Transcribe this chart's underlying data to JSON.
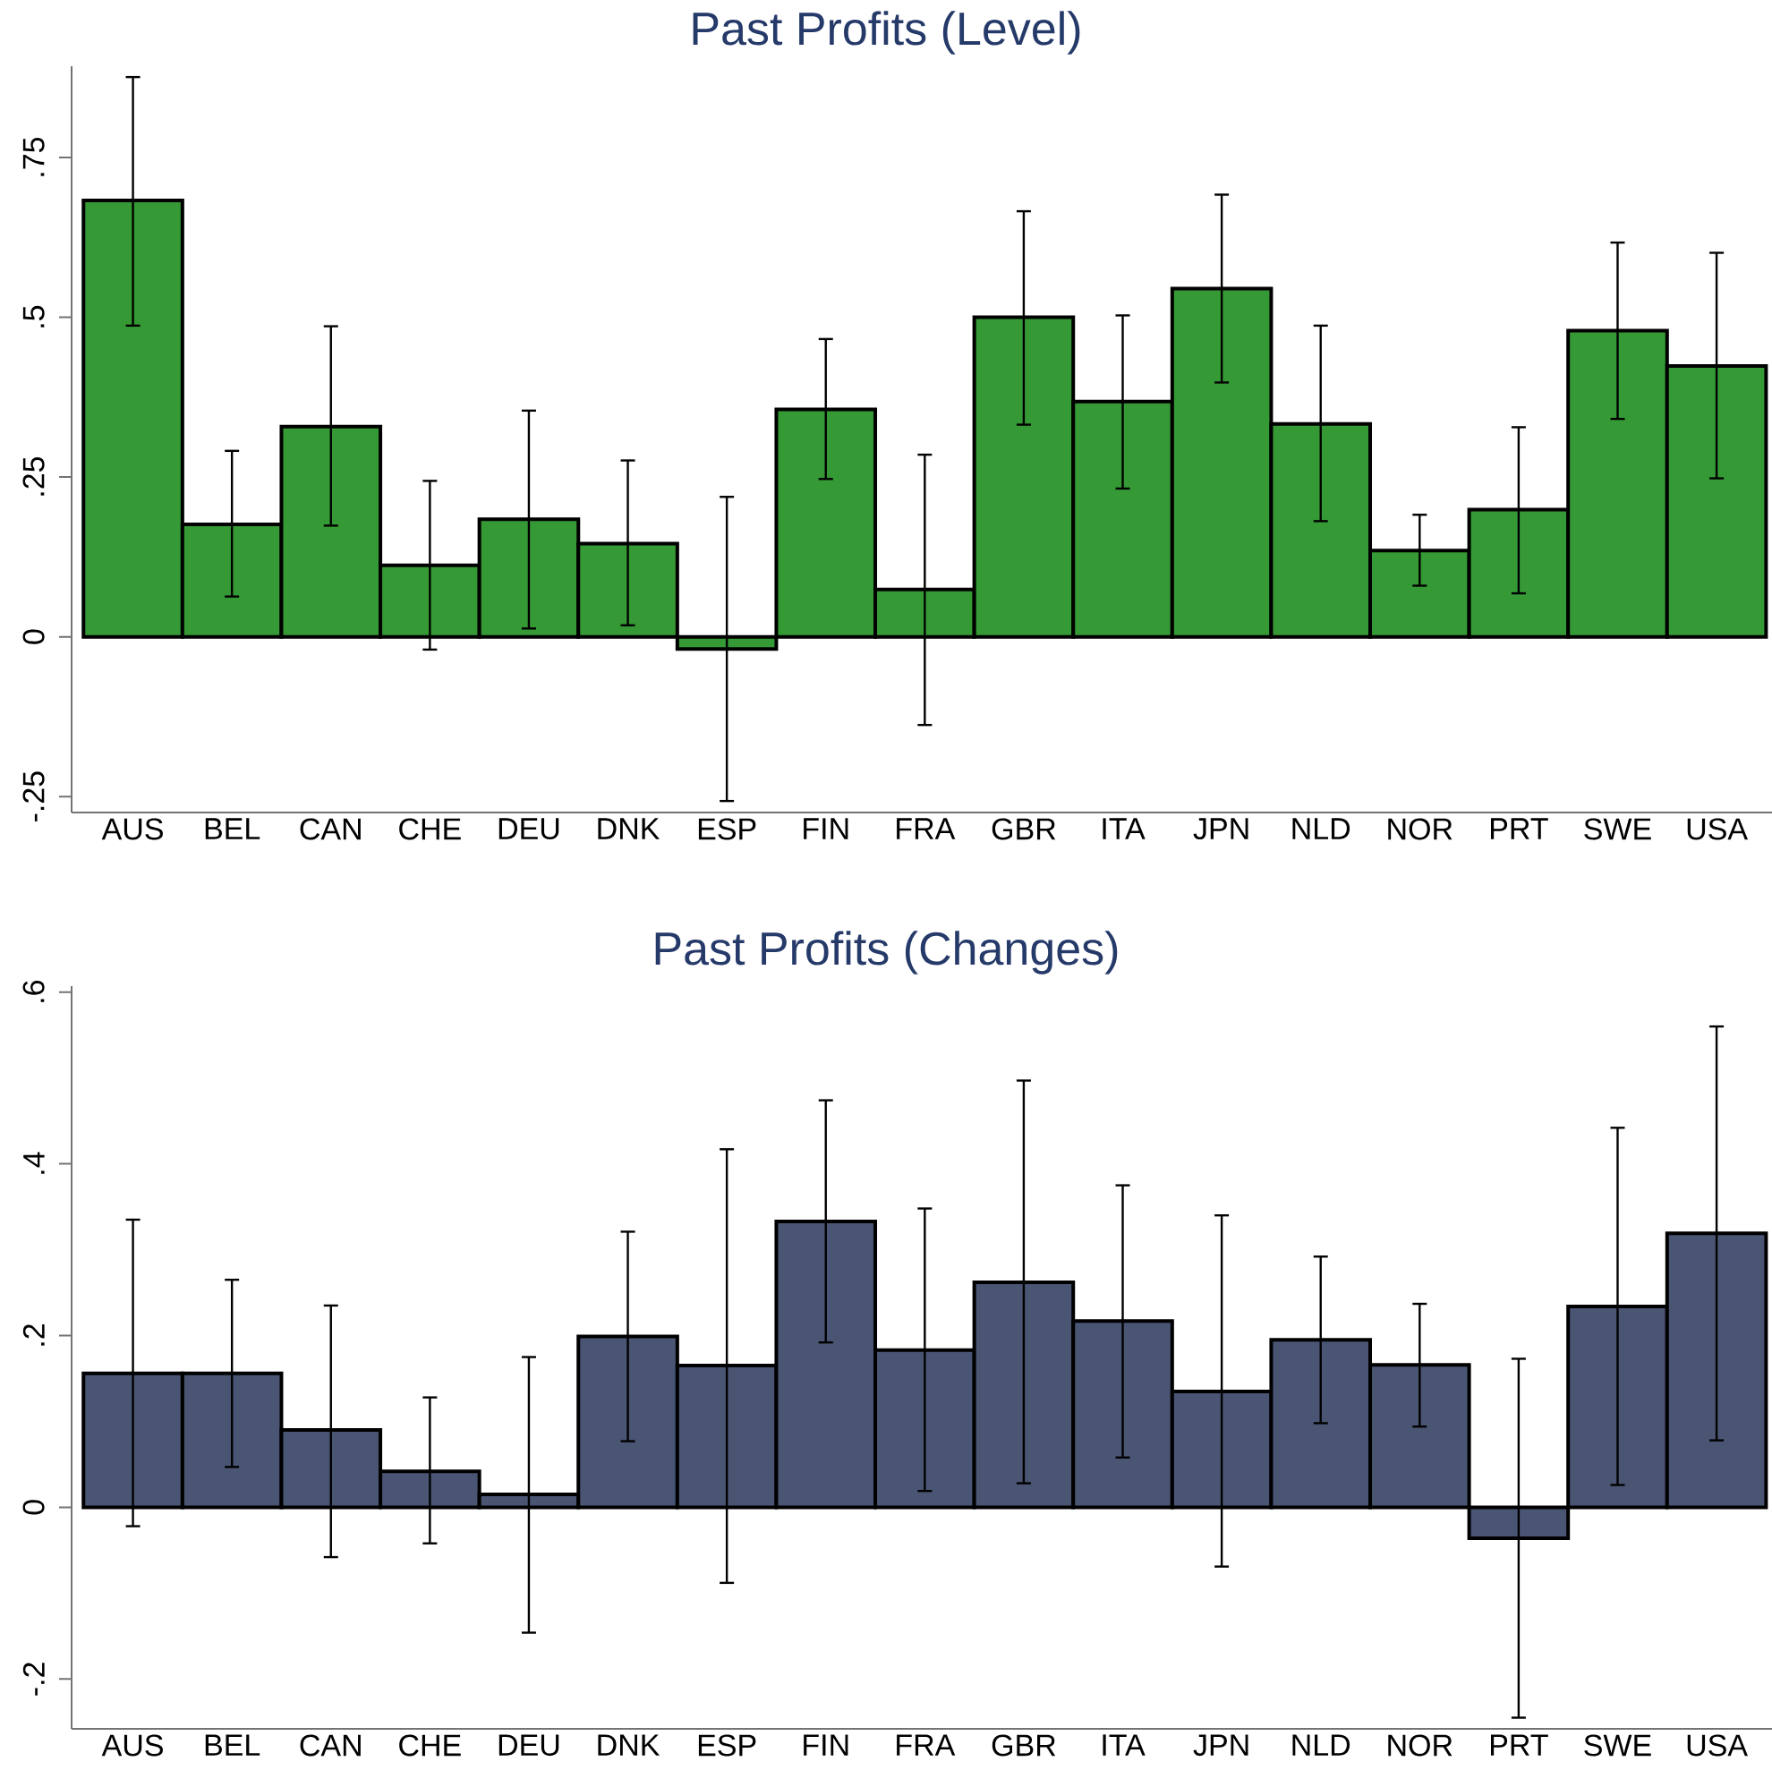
{
  "chart_data": [
    {
      "type": "bar",
      "title": "Past Profits (Level)",
      "categories": [
        "AUS",
        "BEL",
        "CAN",
        "CHE",
        "DEU",
        "DNK",
        "ESP",
        "FIN",
        "FRA",
        "GBR",
        "ITA",
        "JPN",
        "NLD",
        "NOR",
        "PRT",
        "SWE",
        "USA"
      ],
      "values": [
        0.683,
        0.176,
        0.329,
        0.112,
        0.184,
        0.146,
        -0.019,
        0.356,
        0.074,
        0.5,
        0.368,
        0.545,
        0.333,
        0.135,
        0.199,
        0.479,
        0.424
      ],
      "errors": [
        [
          0.487,
          0.876
        ],
        [
          0.063,
          0.291
        ],
        [
          0.174,
          0.486
        ],
        [
          -0.02,
          0.244
        ],
        [
          0.013,
          0.354
        ],
        [
          0.018,
          0.276
        ],
        [
          -0.257,
          0.219
        ],
        [
          0.247,
          0.466
        ],
        [
          -0.138,
          0.285
        ],
        [
          0.332,
          0.666
        ],
        [
          0.232,
          0.503
        ],
        [
          0.398,
          0.692
        ],
        [
          0.181,
          0.487
        ],
        [
          0.08,
          0.191
        ],
        [
          0.068,
          0.328
        ],
        [
          0.341,
          0.617
        ],
        [
          0.248,
          0.601
        ]
      ],
      "color": "#359a35",
      "ylim": [
        -0.275,
        0.893
      ],
      "yticks": [
        {
          "value": -0.25,
          "label": "-.25"
        },
        0,
        {
          "value": 0.25,
          "label": ".25"
        },
        {
          "value": 0.5,
          "label": ".5"
        },
        {
          "value": 0.75,
          "label": ".75"
        }
      ]
    },
    {
      "type": "bar",
      "title": "Past Profits (Changes)",
      "categories": [
        "AUS",
        "BEL",
        "CAN",
        "CHE",
        "DEU",
        "DNK",
        "ESP",
        "FIN",
        "FRA",
        "GBR",
        "ITA",
        "JPN",
        "NLD",
        "NOR",
        "PRT",
        "SWE",
        "USA"
      ],
      "values": [
        0.156,
        0.156,
        0.09,
        0.042,
        0.015,
        0.199,
        0.165,
        0.333,
        0.183,
        0.262,
        0.217,
        0.135,
        0.195,
        0.166,
        -0.036,
        0.234,
        0.319
      ],
      "errors": [
        [
          -0.022,
          0.335
        ],
        [
          0.047,
          0.265
        ],
        [
          -0.058,
          0.235
        ],
        [
          -0.042,
          0.128
        ],
        [
          -0.146,
          0.175
        ],
        [
          0.077,
          0.321
        ],
        [
          -0.088,
          0.417
        ],
        [
          0.192,
          0.474
        ],
        [
          0.019,
          0.348
        ],
        [
          0.028,
          0.497
        ],
        [
          0.058,
          0.375
        ],
        [
          -0.069,
          0.34
        ],
        [
          0.098,
          0.292
        ],
        [
          0.094,
          0.237
        ],
        [
          -0.245,
          0.173
        ],
        [
          0.026,
          0.442
        ],
        [
          0.078,
          0.56
        ]
      ],
      "color": "#4a5574",
      "ylim": [
        -0.258,
        0.607
      ],
      "yticks": [
        {
          "value": -0.2,
          "label": "-.2"
        },
        0,
        {
          "value": 0.2,
          "label": ".2"
        },
        {
          "value": 0.4,
          "label": ".4"
        },
        {
          "value": 0.6,
          "label": ".6"
        }
      ]
    }
  ]
}
